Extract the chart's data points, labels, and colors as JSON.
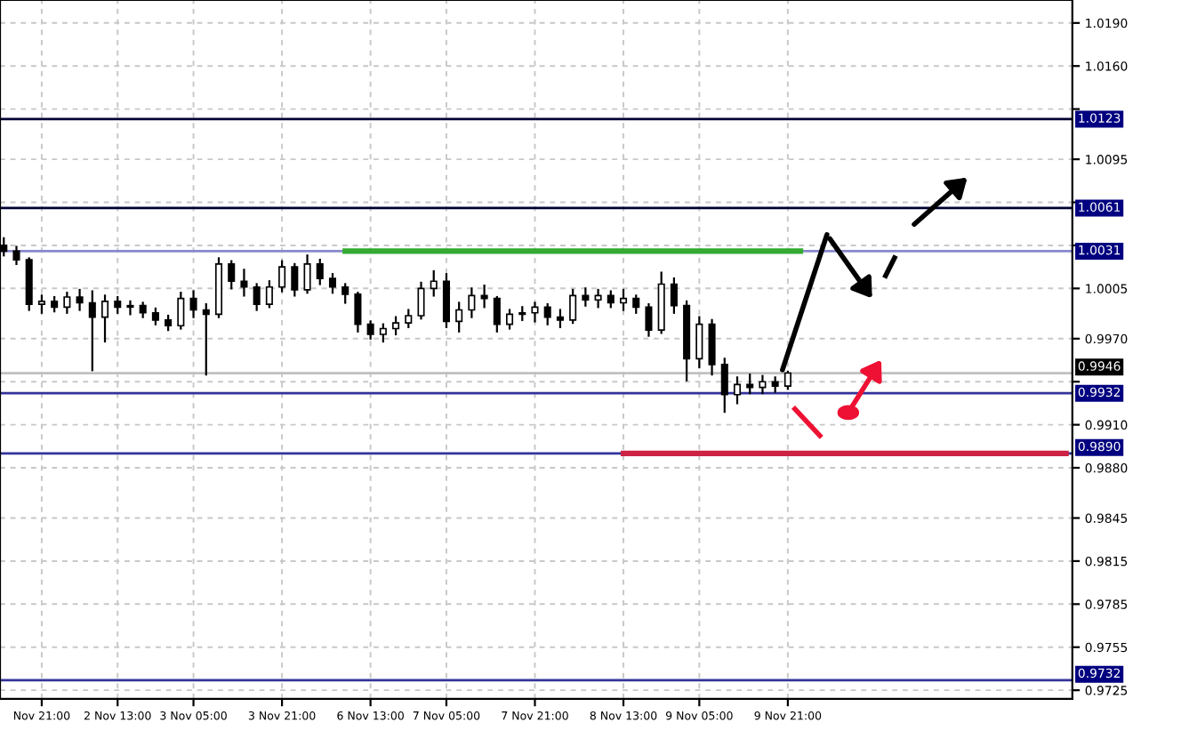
{
  "chart_data": {
    "type": "candlestick",
    "categories": [
      null,
      null,
      null,
      "Nov 21:00",
      null,
      null,
      null,
      null,
      null,
      "2 Nov 13:00",
      null,
      null,
      null,
      null,
      null,
      "3 Nov 05:00",
      null,
      null,
      null,
      null,
      null,
      null,
      "3 Nov 21:00",
      null,
      null,
      null,
      null,
      null,
      null,
      "6 Nov 13:00",
      null,
      null,
      null,
      null,
      null,
      "7 Nov 05:00",
      null,
      null,
      null,
      null,
      null,
      null,
      "7 Nov 21:00",
      null,
      null,
      null,
      null,
      null,
      null,
      "8 Nov 13:00",
      null,
      null,
      null,
      null,
      null,
      "9 Nov 05:00",
      null,
      null,
      null,
      null,
      null,
      null,
      "9 Nov 21:00",
      null,
      null,
      null,
      null,
      null,
      null,
      null,
      null,
      null,
      null,
      null,
      null,
      null,
      null,
      null,
      null,
      null,
      null,
      null,
      null,
      null,
      null
    ],
    "ohlc": [
      [
        1.0035,
        1.004,
        1.0028,
        1.0031
      ],
      [
        1.0031,
        1.0034,
        1.0022,
        1.0025
      ],
      [
        1.0025,
        1.0026,
        0.999,
        0.9994
      ],
      [
        0.9994,
        1.0,
        0.9988,
        0.9996
      ],
      [
        0.9996,
        0.9999,
        0.9989,
        0.9992
      ],
      [
        0.9992,
        1.0002,
        0.9988,
        0.9999
      ],
      [
        0.9999,
        1.0004,
        0.999,
        0.9995
      ],
      [
        0.9995,
        1.0003,
        0.9948,
        0.9985
      ],
      [
        0.9985,
        1.0,
        0.9968,
        0.9996
      ],
      [
        0.9996,
        0.9999,
        0.9988,
        0.9992
      ],
      [
        0.9992,
        0.9996,
        0.9987,
        0.9993
      ],
      [
        0.9993,
        0.9995,
        0.9985,
        0.9988
      ],
      [
        0.9988,
        0.9991,
        0.998,
        0.9983
      ],
      [
        0.9983,
        0.9986,
        0.9976,
        0.9979
      ],
      [
        0.9979,
        1.0002,
        0.9977,
        0.9998
      ],
      [
        0.9998,
        1.0003,
        0.9985,
        0.999
      ],
      [
        0.999,
        0.9994,
        0.9945,
        0.9987
      ],
      [
        0.9987,
        1.0026,
        0.9985,
        1.0022
      ],
      [
        1.0022,
        1.0024,
        1.0005,
        1.001
      ],
      [
        1.001,
        1.0018,
        1.0,
        1.0006
      ],
      [
        1.0006,
        1.0008,
        0.999,
        0.9994
      ],
      [
        0.9994,
        1.001,
        0.9992,
        1.0006
      ],
      [
        1.0006,
        1.0024,
        1.0003,
        1.002
      ],
      [
        1.002,
        1.0022,
        1.0,
        1.0004
      ],
      [
        1.0004,
        1.0028,
        1.0002,
        1.0022
      ],
      [
        1.0022,
        1.0025,
        1.0008,
        1.0012
      ],
      [
        1.0012,
        1.0015,
        1.0002,
        1.0006
      ],
      [
        1.0006,
        1.0008,
        0.9995,
        1.0001
      ],
      [
        1.0001,
        1.0002,
        0.9975,
        0.998
      ],
      [
        0.998,
        0.9982,
        0.997,
        0.9973
      ],
      [
        0.9973,
        0.998,
        0.9968,
        0.9977
      ],
      [
        0.9977,
        0.9985,
        0.9973,
        0.9981
      ],
      [
        0.9981,
        0.999,
        0.9978,
        0.9986
      ],
      [
        0.9986,
        1.0009,
        0.9984,
        1.0005
      ],
      [
        1.0005,
        1.0017,
        1.0,
        1.001
      ],
      [
        1.001,
        1.0015,
        0.9978,
        0.9982
      ],
      [
        0.9982,
        0.9995,
        0.9975,
        0.999
      ],
      [
        0.999,
        1.0005,
        0.9985,
        1.0
      ],
      [
        1.0,
        1.0007,
        0.9992,
        0.9998
      ],
      [
        0.9998,
        0.9999,
        0.9975,
        0.998
      ],
      [
        0.998,
        0.999,
        0.9977,
        0.9987
      ],
      [
        0.9987,
        0.9992,
        0.9983,
        0.9988
      ],
      [
        0.9988,
        0.9995,
        0.9982,
        0.9992
      ],
      [
        0.9992,
        0.9994,
        0.998,
        0.9985
      ],
      [
        0.9985,
        0.999,
        0.9978,
        0.9983
      ],
      [
        0.9983,
        1.0004,
        0.9981,
        1.0
      ],
      [
        1.0,
        1.0005,
        0.9993,
        0.9997
      ],
      [
        0.9997,
        1.0004,
        0.9992,
        1.0
      ],
      [
        1.0,
        1.0003,
        0.9992,
        0.9995
      ],
      [
        0.9995,
        1.0004,
        0.999,
        0.9998
      ],
      [
        0.9998,
        1.0,
        0.9988,
        0.9992
      ],
      [
        0.9992,
        0.9994,
        0.9972,
        0.9976
      ],
      [
        0.9976,
        1.0016,
        0.9974,
        1.0008
      ],
      [
        1.0008,
        1.0012,
        0.9988,
        0.9993
      ],
      [
        0.9993,
        0.9996,
        0.9941,
        0.9956
      ],
      [
        0.9956,
        0.9985,
        0.995,
        0.998
      ],
      [
        0.998,
        0.9983,
        0.9945,
        0.9952
      ],
      [
        0.9952,
        0.9956,
        0.9919,
        0.9931
      ],
      [
        0.9931,
        0.9943,
        0.9925,
        0.9938
      ],
      [
        0.9938,
        0.9945,
        0.9932,
        0.9936
      ],
      [
        0.9936,
        0.9944,
        0.9932,
        0.994
      ],
      [
        0.994,
        0.9943,
        0.9933,
        0.9937
      ],
      [
        0.9937,
        0.9947,
        0.9935,
        0.9946
      ],
      null,
      null,
      null,
      null,
      null,
      null,
      null,
      null,
      null,
      null,
      null,
      null,
      null,
      null,
      null,
      null,
      null,
      null,
      null,
      null,
      null,
      null
    ],
    "color": "#000000",
    "series": [
      {
        "type": "line",
        "color": "#33aa33",
        "values": [
          null,
          null,
          null,
          null,
          null,
          null,
          null,
          null,
          null,
          null,
          null,
          null,
          null,
          null,
          null,
          null,
          null,
          null,
          null,
          null,
          null,
          null,
          null,
          null,
          null,
          null,
          null,
          1.0031,
          1.0031,
          1.0031,
          1.0031,
          1.0031,
          1.0031,
          1.0031,
          1.0031,
          1.0031,
          1.0031,
          1.0031,
          1.0031,
          1.0031,
          1.0031,
          1.0031,
          1.0031,
          1.0031,
          1.0031,
          1.0031,
          1.0031,
          1.0031,
          1.0031,
          1.0031,
          1.0031,
          1.0031,
          1.0031,
          1.0031,
          1.0031,
          1.0031,
          1.0031,
          1.0031,
          1.0031,
          1.0031,
          1.0031,
          1.0031,
          1.0031,
          1.0031,
          null,
          null,
          null,
          null,
          null,
          null,
          null,
          null,
          null,
          null,
          null,
          null,
          null,
          null,
          null,
          null,
          null,
          null,
          null,
          null,
          null
        ]
      },
      {
        "type": "line",
        "color": "#cc2244",
        "values": [
          null,
          null,
          null,
          null,
          null,
          null,
          null,
          null,
          null,
          null,
          null,
          null,
          null,
          null,
          null,
          null,
          null,
          null,
          null,
          null,
          null,
          null,
          null,
          null,
          null,
          null,
          null,
          null,
          null,
          null,
          null,
          null,
          null,
          null,
          null,
          null,
          null,
          null,
          null,
          null,
          null,
          null,
          null,
          null,
          null,
          null,
          null,
          null,
          null,
          0.989,
          0.989,
          0.989,
          0.989,
          0.989,
          0.989,
          0.989,
          0.989,
          0.989,
          0.989,
          0.989,
          0.989,
          0.989,
          0.989,
          0.989,
          0.989,
          0.989,
          0.989,
          0.989,
          0.989,
          0.989,
          0.989,
          0.989,
          0.989,
          0.989,
          0.989,
          0.989,
          0.989,
          0.989,
          0.989,
          0.989,
          0.989,
          0.989,
          0.989,
          0.989,
          0.989
        ]
      }
    ],
    "ylim": [
      0.9719,
      1.0206
    ],
    "yticks": [
      {
        "value": 1.019,
        "label": "1.0190"
      },
      {
        "value": 1.016,
        "label": "1.0160"
      },
      {
        "value": 1.013,
        "label": null
      },
      {
        "value": 1.0095,
        "label": "1.0095"
      },
      {
        "value": 1.0065,
        "label": null
      },
      {
        "value": 1.0035,
        "label": null
      },
      {
        "value": 1.0005,
        "label": "1.0005"
      },
      {
        "value": 0.997,
        "label": "0.9970"
      },
      {
        "value": 0.994,
        "label": null
      },
      {
        "value": 0.991,
        "label": "0.9910"
      },
      {
        "value": 0.988,
        "label": "0.9880"
      },
      {
        "value": 0.9845,
        "label": "0.9845"
      },
      {
        "value": 0.9815,
        "label": "0.9815"
      },
      {
        "value": 0.9785,
        "label": "0.9785"
      },
      {
        "value": 0.9755,
        "label": "0.9755"
      },
      {
        "value": 0.9725,
        "label": "0.9725"
      }
    ],
    "ref_lines": [
      {
        "axis": "y",
        "value": 1.0123,
        "label": "1.0123",
        "color": "#000033"
      },
      {
        "axis": "y",
        "value": 1.0061,
        "label": "1.0061",
        "color": "#000033"
      },
      {
        "axis": "y",
        "value": 1.0031,
        "label": "1.0031",
        "color": "#8888cc"
      },
      {
        "axis": "y",
        "value": 0.9946,
        "label": "0.9946",
        "color": "#c0c0c0"
      },
      {
        "axis": "y",
        "value": 0.9932,
        "label": "0.9932",
        "color": "#333399"
      },
      {
        "axis": "y",
        "value": 0.989,
        "label": "0.9890",
        "color": "#333399"
      },
      {
        "axis": "y",
        "value": 0.9732,
        "label": "0.9732",
        "color": "#333399"
      }
    ],
    "grid": true
  }
}
